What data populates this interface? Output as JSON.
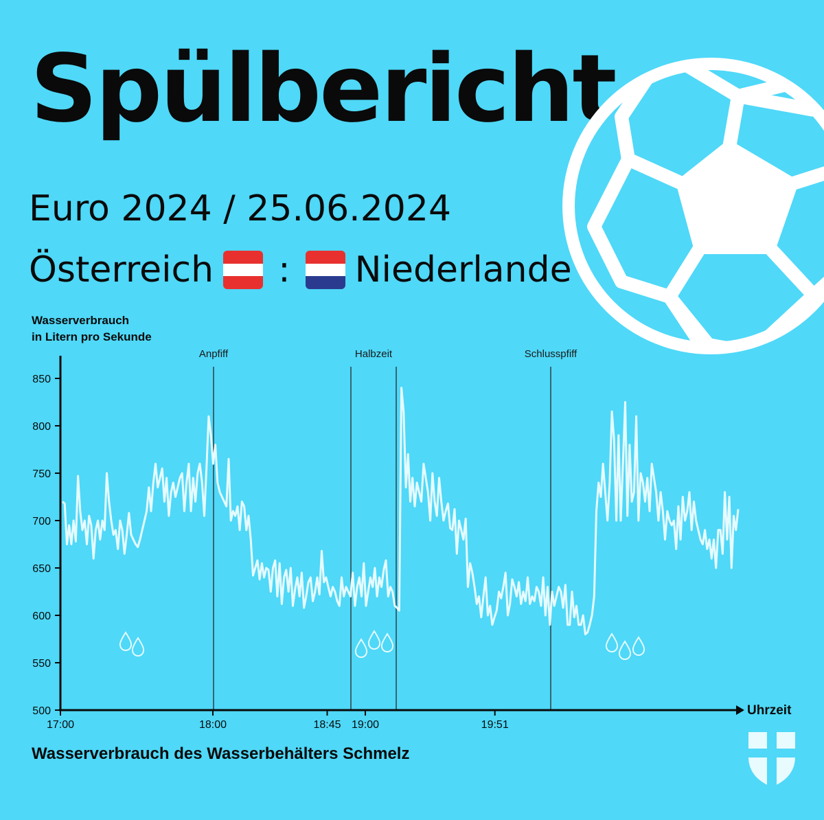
{
  "header": {
    "title": "Spülbericht",
    "subtitle": "Euro 2024 / 25.06.2024",
    "team_home": "Österreich",
    "separator": ":",
    "team_away": "Niederlande"
  },
  "colors": {
    "background": "#4fd8f8",
    "line": "#e6fbff",
    "text": "#0a0a0a",
    "austria_red": "#e8312f",
    "netherlands_red": "#e8312f",
    "netherlands_blue": "#2a3b8f"
  },
  "icons": [
    "football-icon",
    "austria-flag-icon",
    "netherlands-flag-icon",
    "water-drops-icon",
    "vienna-coat-of-arms-icon"
  ],
  "footer": "Wasserverbrauch des Wasserbehälters Schmelz",
  "chart_data": {
    "type": "line",
    "ylabel_line1": "Wasserverbrauch",
    "ylabel_line2": "in Litern pro Sekunde",
    "xlabel": "Uhrzeit",
    "ylim": [
      500,
      875
    ],
    "yticks": [
      500,
      550,
      600,
      650,
      700,
      750,
      800,
      850
    ],
    "x_range_minutes": [
      0,
      180
    ],
    "xticks": [
      {
        "label": "17:00",
        "t": 0
      },
      {
        "label": "18:00",
        "t": 60
      },
      {
        "label": "18:45",
        "t": 105
      },
      {
        "label": "19:00",
        "t": 120
      },
      {
        "label": "19:51",
        "t": 171
      }
    ],
    "events": [
      {
        "label": "Anpfiff",
        "times": [
          60
        ]
      },
      {
        "label": "Halbzeit",
        "times": [
          114,
          131
        ]
      },
      {
        "label": "Schlusspfiff",
        "times": [
          192
        ]
      }
    ],
    "series": [
      {
        "values": [
          720,
          718,
          675,
          695,
          675,
          700,
          678,
          747,
          710,
          690,
          700,
          675,
          705,
          695,
          660,
          690,
          700,
          680,
          700,
          690,
          750,
          720,
          700,
          685,
          690,
          670,
          700,
          690,
          665,
          685,
          708,
          685,
          680,
          675,
          672,
          680,
          690,
          700,
          710,
          735,
          710,
          740,
          760,
          735,
          745,
          755,
          720,
          745,
          705,
          730,
          740,
          725,
          735,
          745,
          750,
          710,
          740,
          760,
          710,
          745,
          720,
          750,
          760,
          740,
          705,
          755,
          810,
          790,
          760,
          780,
          740,
          730,
          725,
          720,
          715,
          765,
          700,
          710,
          705,
          715,
          690,
          720,
          715,
          690,
          705,
          680,
          642,
          650,
          658,
          638,
          655,
          640,
          650,
          648,
          625,
          650,
          658,
          620,
          655,
          612,
          640,
          648,
          625,
          650,
          610,
          628,
          640,
          620,
          645,
          608,
          620,
          635,
          640,
          615,
          625,
          640,
          622,
          668,
          635,
          640,
          630,
          620,
          630,
          625,
          615,
          610,
          640,
          620,
          630,
          625,
          620,
          645,
          610,
          630,
          640,
          620,
          655,
          610,
          625,
          640,
          630,
          650,
          620,
          640,
          630,
          648,
          658,
          620,
          630,
          625,
          610,
          608,
          605,
          840,
          815,
          735,
          770,
          720,
          745,
          715,
          740,
          730,
          720,
          760,
          745,
          730,
          700,
          750,
          720,
          705,
          745,
          720,
          700,
          710,
          718,
          692,
          690,
          712,
          665,
          700,
          690,
          680,
          702,
          630,
          655,
          645,
          630,
          612,
          620,
          598,
          620,
          640,
          600,
          610,
          590,
          598,
          605,
          625,
          618,
          630,
          645,
          600,
          612,
          638,
          630,
          620,
          635,
          612,
          625,
          615,
          640,
          612,
          620,
          615,
          630,
          625,
          610,
          640,
          600,
          630,
          590,
          625,
          610,
          620,
          630,
          625,
          608,
          632,
          590,
          590,
          625,
          598,
          610,
          590,
          590,
          600,
          580,
          582,
          590,
          600,
          620,
          710,
          740,
          725,
          760,
          730,
          700,
          740,
          815,
          785,
          700,
          790,
          700,
          760,
          825,
          705,
          780,
          720,
          730,
          810,
          700,
          750,
          740,
          720,
          745,
          710,
          760,
          745,
          730,
          700,
          730,
          710,
          680,
          710,
          700,
          695,
          700,
          670,
          715,
          680,
          725,
          700,
          710,
          730,
          690,
          720,
          700,
          690,
          680,
          675,
          690,
          670,
          680,
          660,
          680,
          650,
          690,
          690,
          665,
          730,
          680,
          725,
          650,
          705,
          690,
          712
        ]
      }
    ]
  }
}
